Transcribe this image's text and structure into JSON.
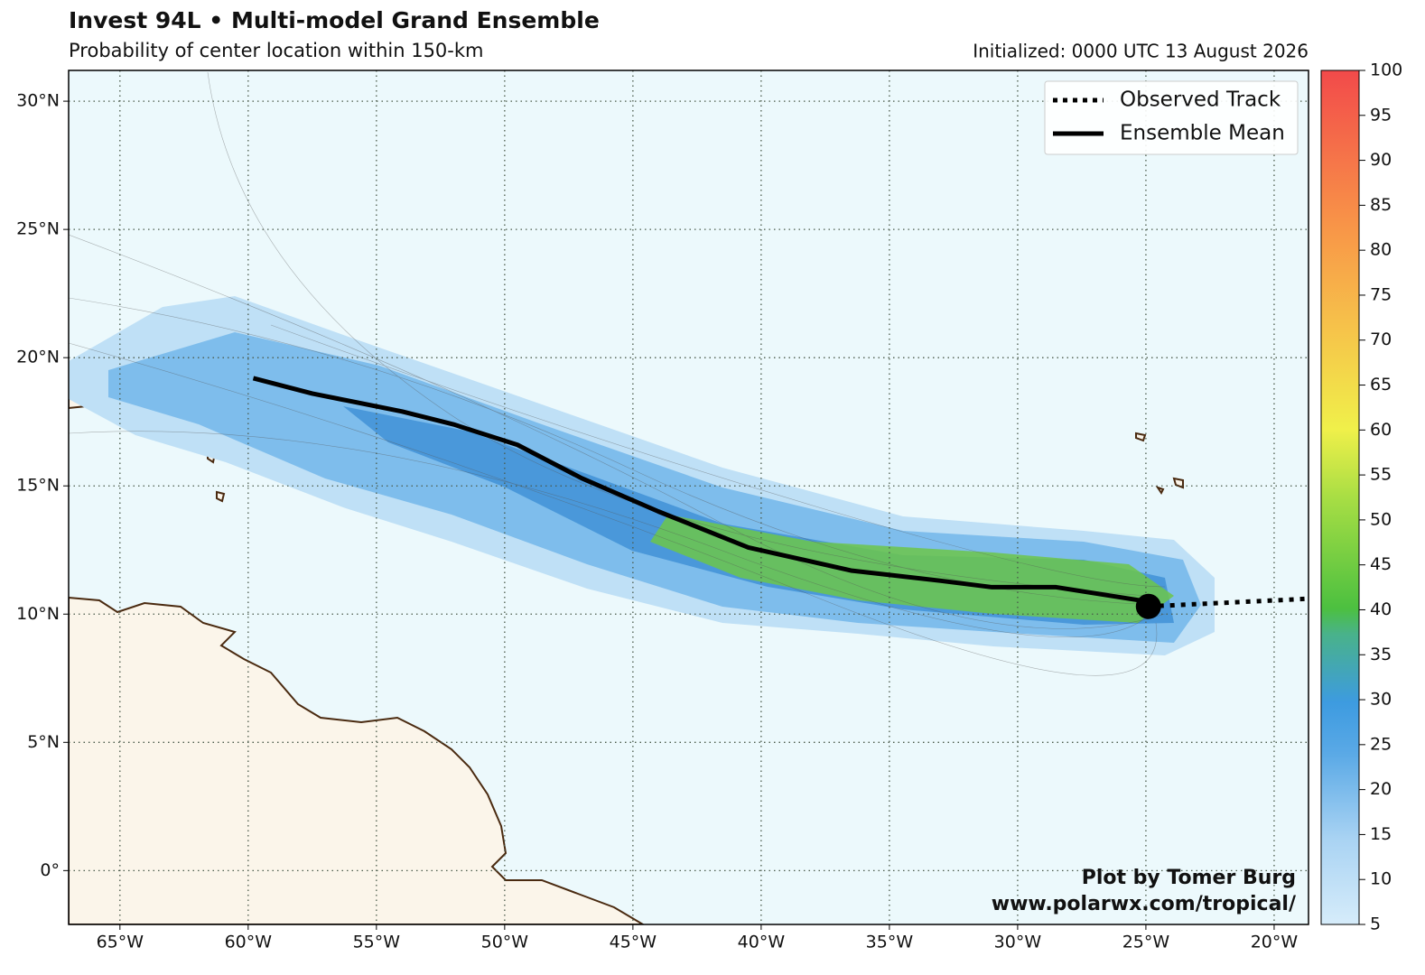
{
  "map": {
    "title": "Invest 94L • Multi-model Grand Ensemble",
    "subtitle": "Probability of center location within 150-km",
    "initialized": "Initialized: 0000 UTC 13 August 2026",
    "xlim": [
      -67,
      -18.66
    ],
    "ylim": [
      -2.1,
      31.2
    ],
    "xticks": [
      {
        "value": -65,
        "label": "65°W"
      },
      {
        "value": -60,
        "label": "60°W"
      },
      {
        "value": -55,
        "label": "55°W"
      },
      {
        "value": -50,
        "label": "50°W"
      },
      {
        "value": -45,
        "label": "45°W"
      },
      {
        "value": -40,
        "label": "40°W"
      },
      {
        "value": -35,
        "label": "35°W"
      },
      {
        "value": -30,
        "label": "30°W"
      },
      {
        "value": -25,
        "label": "25°W"
      },
      {
        "value": -20,
        "label": "20°W"
      }
    ],
    "yticks": [
      {
        "value": 0,
        "label": "0°"
      },
      {
        "value": 5,
        "label": "5°N"
      },
      {
        "value": 10,
        "label": "10°N"
      },
      {
        "value": 15,
        "label": "15°N"
      },
      {
        "value": 20,
        "label": "20°N"
      },
      {
        "value": 25,
        "label": "25°N"
      },
      {
        "value": 30,
        "label": "30°N"
      }
    ],
    "grid": true,
    "legend": [
      {
        "name": "Observed Track",
        "style": "dotted",
        "color": "#000000"
      },
      {
        "name": "Ensemble Mean",
        "style": "solid",
        "color": "#000000"
      }
    ],
    "ensemble_mean": {
      "lon": [
        -59.8,
        -57.5,
        -56.5,
        -54,
        -52,
        -49.5,
        -47,
        -44,
        -40.5,
        -36.5,
        -33,
        -31,
        -28.5,
        -25
      ],
      "lat": [
        19.2,
        18.6,
        18.4,
        17.9,
        17.4,
        16.6,
        15.3,
        14,
        12.6,
        11.7,
        11.3,
        11.05,
        11.05,
        10.5
      ]
    },
    "observed_track": {
      "lon": [
        -24.9,
        -18.66
      ],
      "lat": [
        10.3,
        10.6
      ]
    },
    "current_position": {
      "lon": -24.9,
      "lat": 10.3
    },
    "colorbar": {
      "lim": [
        5,
        100
      ],
      "ticks": [
        5,
        10,
        15,
        20,
        25,
        30,
        35,
        40,
        45,
        50,
        55,
        60,
        65,
        70,
        75,
        80,
        85,
        90,
        95,
        100
      ]
    },
    "credit": [
      "Plot by Tomer Burg",
      "www.polarwx.com/tropical/"
    ]
  }
}
